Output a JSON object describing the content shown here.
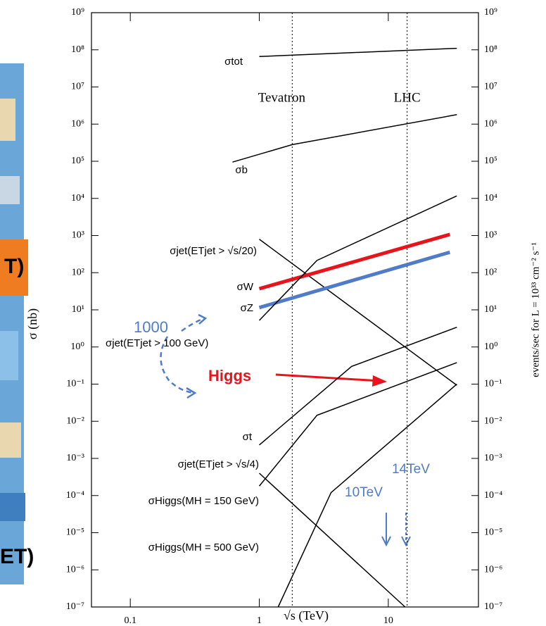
{
  "chart_data": {
    "type": "line",
    "xlabel": "√s   (TeV)",
    "ylabel": "σ  (nb)",
    "y2label": "events/sec  for  L = 10³³ cm⁻² s⁻¹",
    "log_x": true,
    "log_y": true,
    "xlim": [
      0.05,
      50
    ],
    "ylim": [
      1e-07,
      1000000000.0
    ],
    "y2lim": [
      1e-07,
      1000000000.0
    ],
    "xticks": [
      0.1,
      1,
      10
    ],
    "yticks": [
      {
        "value": 1000000000.0,
        "label": "10⁹"
      },
      {
        "value": 100000000.0,
        "label": "10⁸"
      },
      {
        "value": 10000000.0,
        "label": "10⁷"
      },
      {
        "value": 1000000.0,
        "label": "10⁶"
      },
      {
        "value": 100000.0,
        "label": "10⁵"
      },
      {
        "value": 10000.0,
        "label": "10⁴"
      },
      {
        "value": 1000.0,
        "label": "10³"
      },
      {
        "value": 100.0,
        "label": "10²"
      },
      {
        "value": 10.0,
        "label": "10¹"
      },
      {
        "value": 1,
        "label": "10⁰"
      },
      {
        "value": 0.1,
        "label": "10⁻¹"
      },
      {
        "value": 0.01,
        "label": "10⁻²"
      },
      {
        "value": 0.001,
        "label": "10⁻³"
      },
      {
        "value": 0.0001,
        "label": "10⁻⁴"
      },
      {
        "value": 1e-05,
        "label": "10⁻⁵"
      },
      {
        "value": 1e-06,
        "label": "10⁻⁶"
      },
      {
        "value": 1e-07,
        "label": "10⁻⁷"
      }
    ],
    "y2ticks": [
      {
        "value": 1000000000.0,
        "label": "10⁹"
      },
      {
        "value": 100000000.0,
        "label": "10⁸"
      },
      {
        "value": 10000000.0,
        "label": "10⁷"
      },
      {
        "value": 1000000.0,
        "label": "10⁶"
      },
      {
        "value": 100000.0,
        "label": "10⁵"
      },
      {
        "value": 10000.0,
        "label": "10⁴"
      },
      {
        "value": 1000.0,
        "label": "10³"
      },
      {
        "value": 100.0,
        "label": "10²"
      },
      {
        "value": 10.0,
        "label": "10¹"
      },
      {
        "value": 1,
        "label": "10⁰"
      },
      {
        "value": 0.1,
        "label": "10⁻¹"
      },
      {
        "value": 0.01,
        "label": "10⁻²"
      },
      {
        "value": 0.001,
        "label": "10⁻³"
      },
      {
        "value": 0.0001,
        "label": "10⁻⁴"
      },
      {
        "value": 1e-05,
        "label": "10⁻⁵"
      },
      {
        "value": 1e-06,
        "label": "10⁻⁶"
      },
      {
        "value": 1e-07,
        "label": "10⁻⁷"
      }
    ],
    "vlines": [
      {
        "x": 1.8,
        "label": "Tevatron"
      },
      {
        "x": 14,
        "label": "LHC"
      }
    ],
    "series": [
      {
        "name": "σtot",
        "color": "#000000",
        "x": [
          1,
          34
        ],
        "values": [
          66000000.0,
          110000000.0
        ]
      },
      {
        "name": "σb",
        "color": "#000000",
        "x": [
          0.62,
          1.8,
          34
        ],
        "values": [
          95000.0,
          280000.0,
          1800000.0
        ]
      },
      {
        "name": "σjet(ETjet > √s/20)",
        "color": "#000000",
        "x": [
          1,
          34
        ],
        "values": [
          794,
          0.093
        ]
      },
      {
        "name": "σW",
        "color": "#e8141b",
        "x": [
          1,
          30
        ],
        "values": [
          37,
          1070
        ]
      },
      {
        "name": "σZ",
        "color": "#4f7bc8",
        "x": [
          1,
          30
        ],
        "values": [
          11.5,
          355
        ]
      },
      {
        "name": "σjet(ETjet > 100 GeV)",
        "color": "#000000",
        "x": [
          1,
          2.8,
          34
        ],
        "values": [
          5.2,
          214,
          11700
        ]
      },
      {
        "name": "σt",
        "color": "#000000",
        "x": [
          1,
          5.2,
          34
        ],
        "values": [
          0.0023,
          0.3,
          3.4
        ]
      },
      {
        "name": "σjet(ETjet > √s/4)",
        "color": "#000000",
        "x": [
          1,
          13.5
        ],
        "values": [
          0.0004,
          1e-07
        ]
      },
      {
        "name": "σHiggs(MH = 150 GeV)",
        "color": "#000000",
        "x": [
          1,
          2.8,
          34
        ],
        "values": [
          0.00018,
          0.0145,
          0.38
        ]
      },
      {
        "name": "σHiggs(MH = 500 GeV)",
        "color": "#000000",
        "x": [
          1.4,
          3.6,
          34
        ],
        "values": [
          1e-07,
          0.00012,
          0.1
        ]
      }
    ],
    "annotations": [
      "1000",
      "Higgs",
      "10TeV",
      "14TeV"
    ],
    "fragments": [
      "T)",
      "ET)"
    ]
  }
}
